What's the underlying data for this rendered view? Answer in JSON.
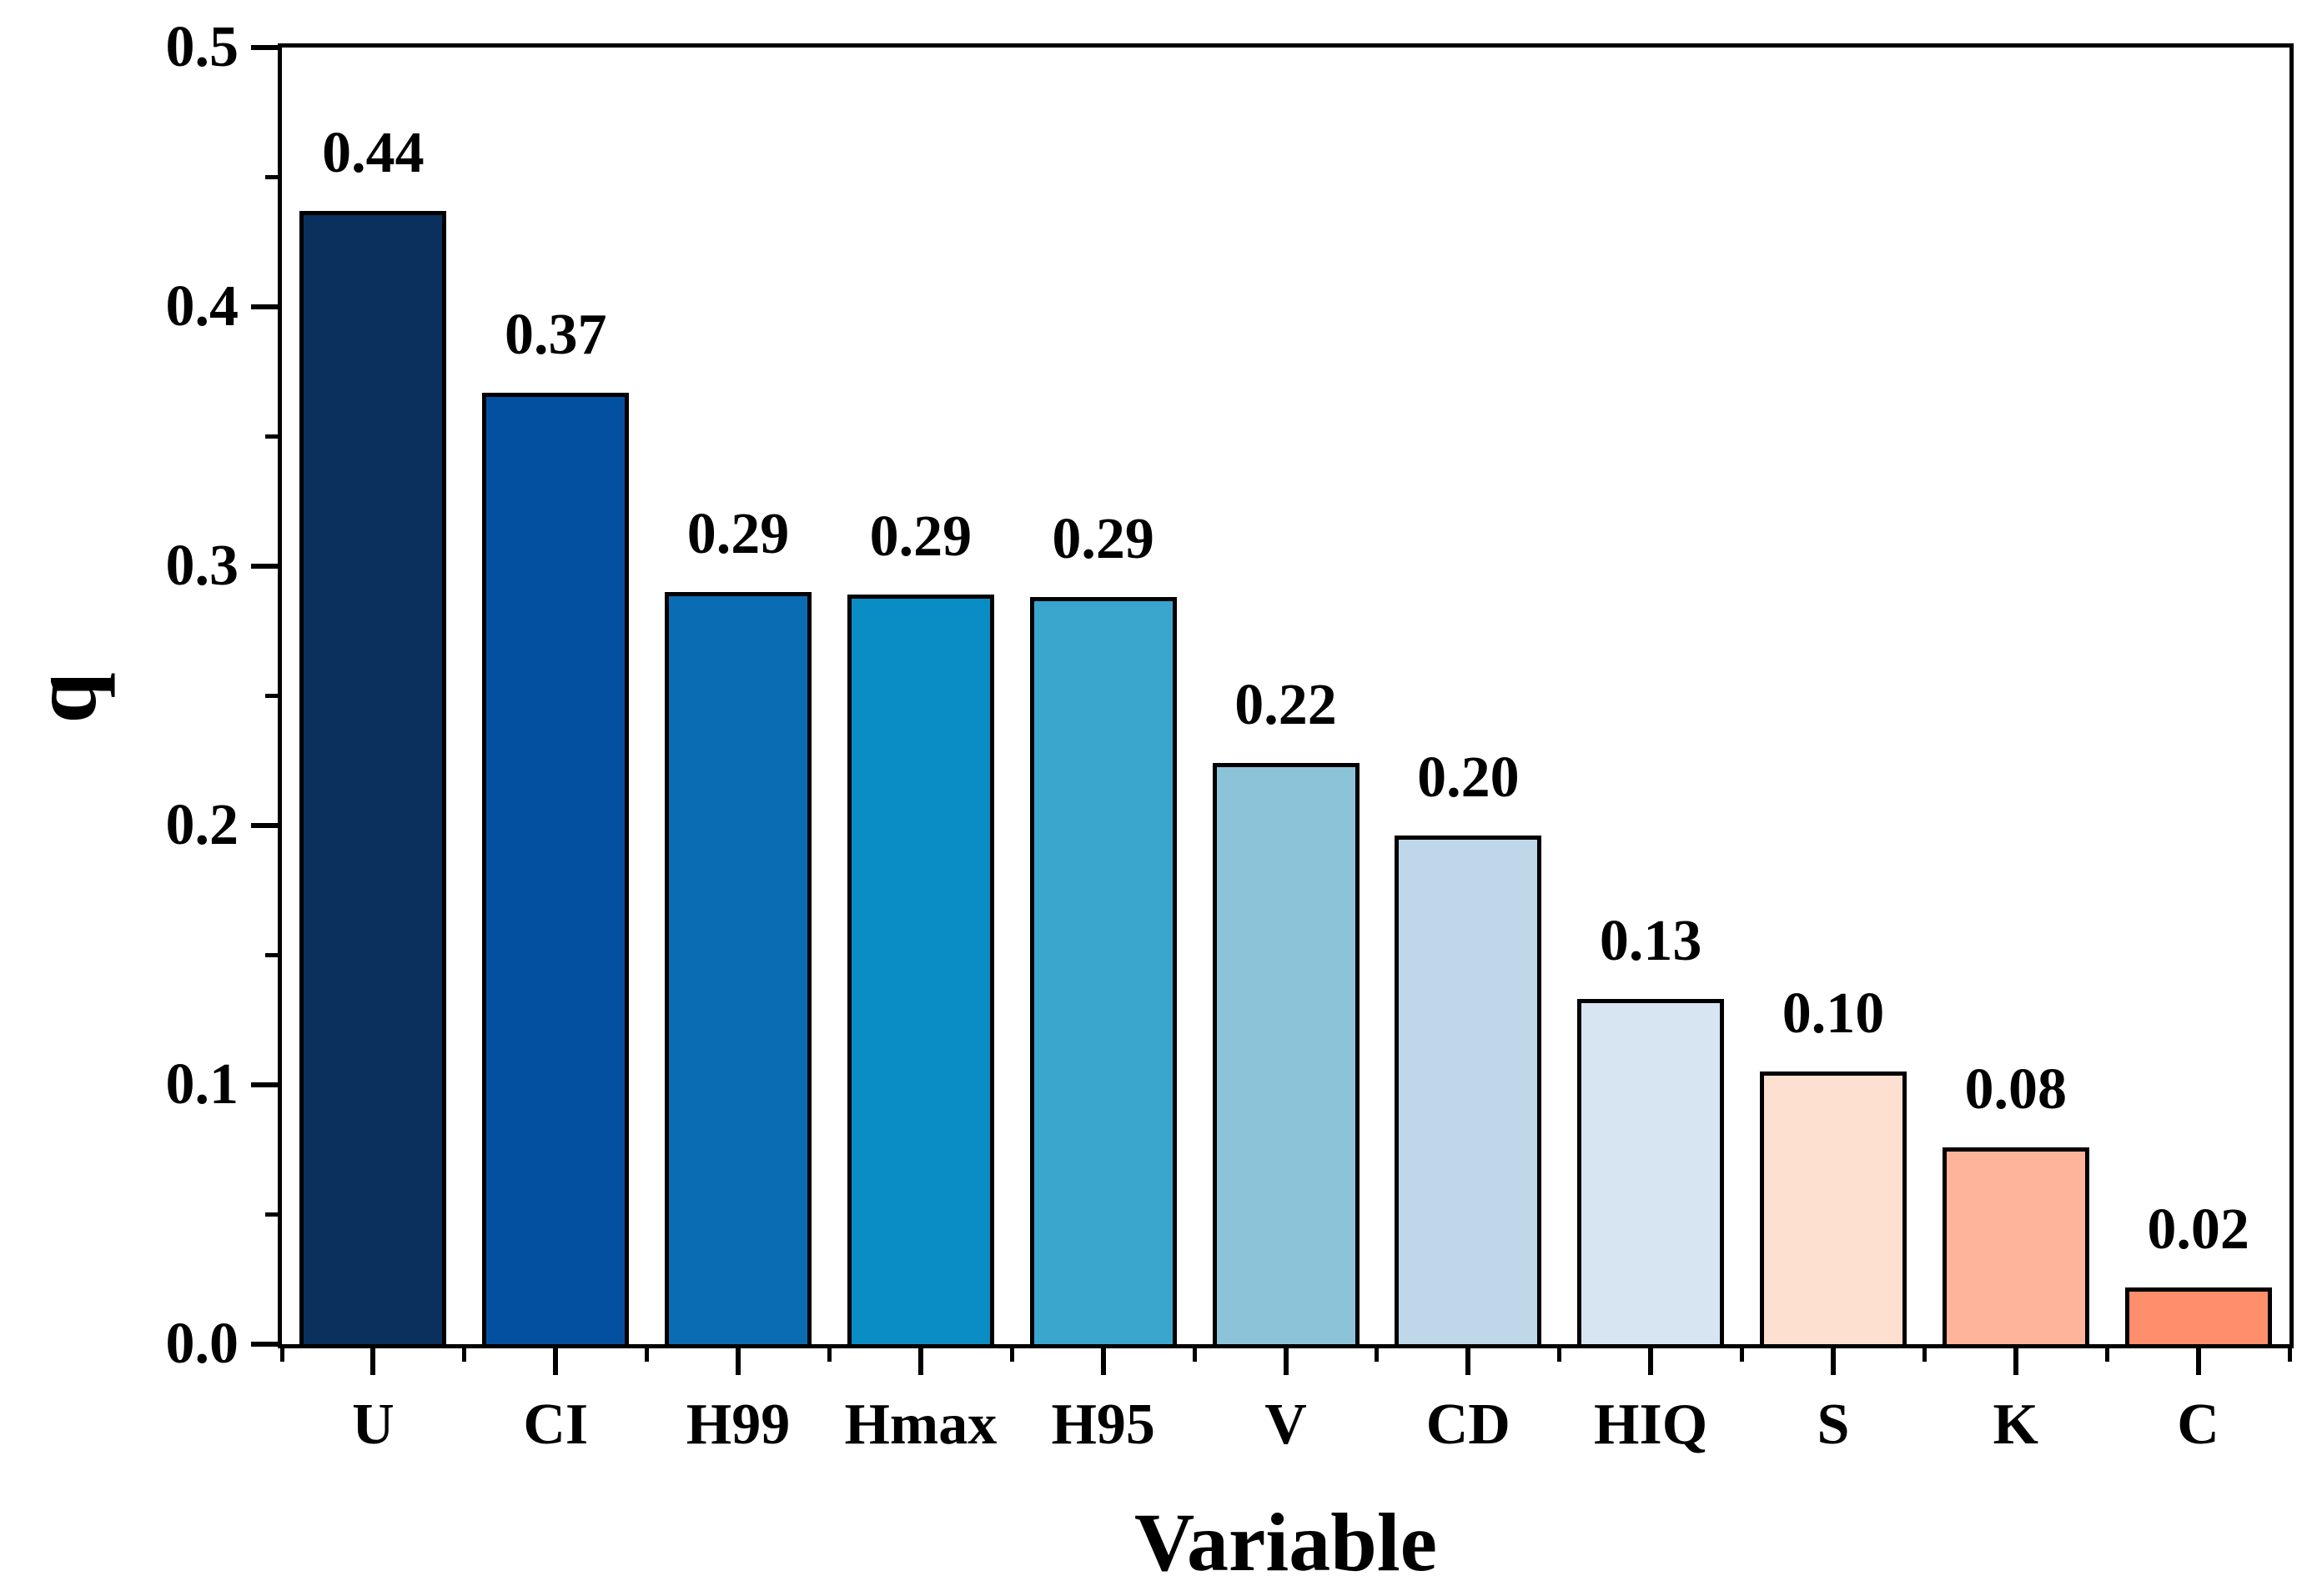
{
  "chart_data": {
    "type": "bar",
    "title": "",
    "xlabel": "Variable",
    "ylabel": "q",
    "ylim": [
      0.0,
      0.5
    ],
    "grid": false,
    "legend": "none",
    "background_color": "#ffffff",
    "bar_border_color": "#000000",
    "categories": [
      "U",
      "CI",
      "H99",
      "Hmax",
      "H95",
      "V",
      "CD",
      "HIQ",
      "S",
      "K",
      "C"
    ],
    "values": [
      0.44,
      0.37,
      0.29,
      0.29,
      0.29,
      0.22,
      0.2,
      0.13,
      0.1,
      0.08,
      0.02
    ],
    "value_labels": [
      "0.44",
      "0.37",
      "0.29",
      "0.29",
      "0.29",
      "0.22",
      "0.20",
      "0.13",
      "0.10",
      "0.08",
      "0.02"
    ],
    "values_precise": [
      0.437,
      0.367,
      0.29,
      0.289,
      0.288,
      0.224,
      0.196,
      0.133,
      0.105,
      0.076,
      0.022
    ],
    "bar_colors": [
      "#0a305e",
      "#0450a0",
      "#0a6db3",
      "#0a8dc4",
      "#3aa6ce",
      "#8cc3d9",
      "#bed7e9",
      "#d7e5f2",
      "#fde0d0",
      "#feb49a",
      "#fe8e6c"
    ],
    "ytick_values": [
      0.0,
      0.1,
      0.2,
      0.3,
      0.4,
      0.5
    ],
    "ytick_labels": [
      "0.0",
      "0.1",
      "0.2",
      "0.3",
      "0.4",
      "0.5"
    ],
    "yminor_values": [
      0.05,
      0.15,
      0.25,
      0.35,
      0.45
    ]
  }
}
